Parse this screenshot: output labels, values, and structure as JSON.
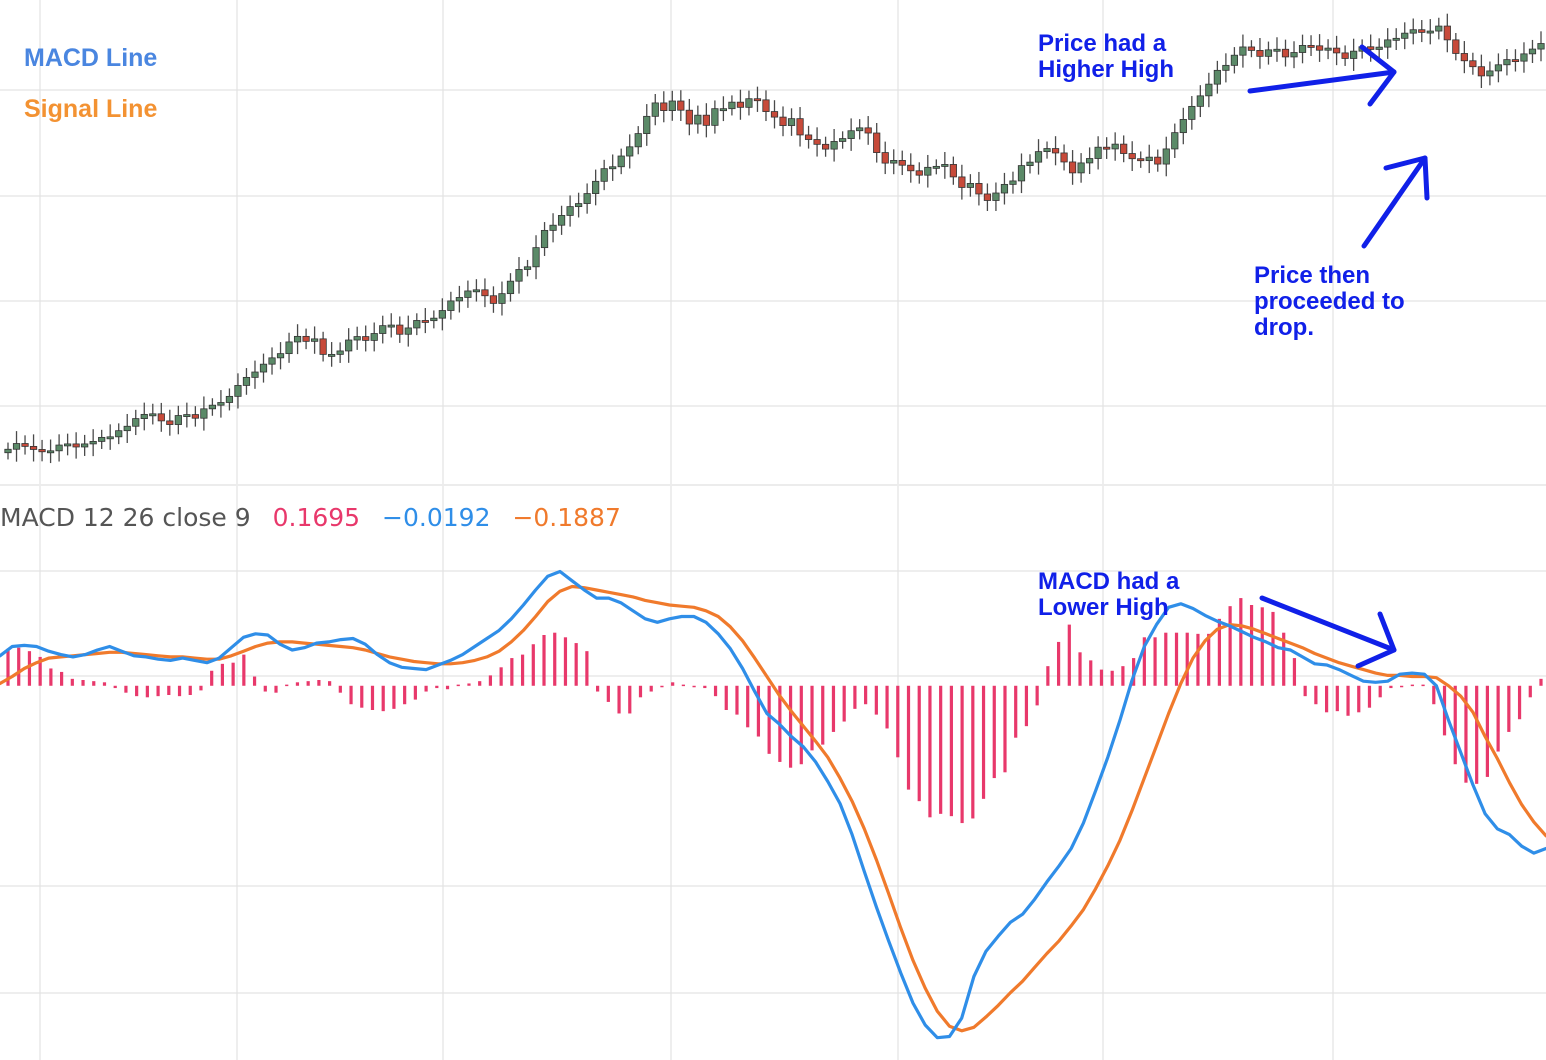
{
  "colors": {
    "macd": "#2f8ee8",
    "signal": "#f07a2c",
    "histogram": "#e8386b",
    "candle_up": "#5b8a68",
    "candle_down": "#c74a3a",
    "annotation": "#1020e8",
    "grid": "#e3e3e3",
    "legend_macd": "#4a86e0",
    "legend_signal": "#f39232"
  },
  "legend": {
    "macd_label": "MACD Line",
    "signal_label": "Signal Line"
  },
  "indicator": {
    "label": "MACD 12 26 close 9",
    "histogram_value": "0.1695",
    "macd_value": "−0.0192",
    "signal_value": "−0.1887"
  },
  "annotations": [
    "Price had a\nHigher High",
    "Price then\nproceeded to\ndrop.",
    "MACD had a\nLower High"
  ],
  "chart_data": [
    {
      "type": "candlestick",
      "title": "",
      "candles": [
        [
          0.38,
          0.56
        ],
        [
          0.56,
          0.86
        ],
        [
          0.86,
          0.71
        ],
        [
          0.71,
          0.55
        ],
        [
          0.55,
          0.43
        ],
        [
          0.43,
          0.48
        ],
        [
          0.48,
          0.78
        ],
        [
          0.78,
          0.84
        ],
        [
          0.84,
          0.68
        ],
        [
          0.68,
          0.84
        ],
        [
          0.84,
          0.97
        ],
        [
          0.97,
          1.18
        ],
        [
          1.18,
          1.21
        ],
        [
          1.21,
          1.53
        ],
        [
          1.53,
          1.76
        ],
        [
          1.76,
          2.16
        ],
        [
          2.16,
          2.38
        ],
        [
          2.38,
          2.41
        ],
        [
          2.41,
          2.04
        ],
        [
          2.04,
          1.85
        ],
        [
          1.85,
          2.32
        ],
        [
          2.32,
          2.37
        ],
        [
          2.37,
          2.18
        ],
        [
          2.18,
          2.67
        ],
        [
          2.67,
          2.86
        ],
        [
          2.86,
          3.0
        ],
        [
          3.0,
          3.32
        ],
        [
          3.32,
          3.89
        ],
        [
          3.89,
          4.31
        ],
        [
          4.31,
          4.59
        ],
        [
          4.59,
          5.0
        ],
        [
          5.0,
          5.33
        ],
        [
          5.33,
          5.55
        ],
        [
          5.55,
          6.16
        ],
        [
          6.16,
          6.45
        ],
        [
          6.45,
          6.19
        ],
        [
          6.19,
          6.32
        ],
        [
          6.32,
          5.51
        ],
        [
          5.51,
          5.51
        ],
        [
          5.51,
          5.69
        ],
        [
          5.69,
          6.26
        ],
        [
          6.26,
          6.44
        ],
        [
          6.44,
          6.24
        ],
        [
          6.24,
          6.6
        ],
        [
          6.6,
          7.01
        ],
        [
          7.01,
          7.04
        ],
        [
          7.04,
          6.56
        ],
        [
          6.56,
          6.89
        ],
        [
          6.89,
          7.28
        ],
        [
          7.28,
          7.27
        ],
        [
          7.27,
          7.4
        ],
        [
          7.4,
          7.8
        ],
        [
          7.8,
          8.3
        ],
        [
          8.3,
          8.48
        ],
        [
          8.48,
          8.82
        ],
        [
          8.82,
          8.88
        ],
        [
          8.88,
          8.57
        ],
        [
          8.57,
          8.17
        ],
        [
          8.17,
          8.68
        ],
        [
          8.68,
          9.33
        ],
        [
          9.33,
          9.94
        ],
        [
          9.94,
          10.08
        ],
        [
          10.08,
          11.08
        ],
        [
          11.08,
          11.98
        ],
        [
          11.98,
          12.25
        ],
        [
          12.25,
          12.76
        ],
        [
          12.76,
          13.22
        ],
        [
          13.22,
          13.38
        ],
        [
          13.38,
          13.9
        ],
        [
          13.9,
          14.54
        ],
        [
          14.54,
          15.2
        ],
        [
          15.2,
          15.3
        ],
        [
          15.3,
          15.86
        ],
        [
          15.86,
          16.34
        ],
        [
          16.34,
          17.03
        ],
        [
          17.03,
          17.93
        ],
        [
          17.93,
          18.63
        ],
        [
          18.63,
          18.23
        ],
        [
          18.23,
          18.73
        ],
        [
          18.73,
          18.25
        ],
        [
          18.25,
          17.53
        ],
        [
          17.53,
          17.99
        ],
        [
          17.99,
          17.46
        ],
        [
          17.46,
          18.33
        ],
        [
          18.33,
          18.33
        ],
        [
          18.33,
          18.67
        ],
        [
          18.67,
          18.4
        ],
        [
          18.4,
          18.85
        ],
        [
          18.85,
          18.79
        ],
        [
          18.79,
          18.18
        ],
        [
          18.18,
          17.89
        ],
        [
          17.89,
          17.45
        ],
        [
          17.45,
          17.81
        ],
        [
          17.81,
          16.96
        ],
        [
          16.96,
          16.72
        ],
        [
          16.72,
          16.47
        ],
        [
          16.47,
          16.22
        ],
        [
          16.22,
          16.62
        ],
        [
          16.62,
          16.77
        ],
        [
          16.77,
          17.18
        ],
        [
          17.18,
          17.33
        ],
        [
          17.33,
          17.06
        ],
        [
          17.06,
          16.04
        ],
        [
          16.04,
          15.49
        ],
        [
          15.49,
          15.63
        ],
        [
          15.63,
          15.38
        ],
        [
          15.38,
          15.09
        ],
        [
          15.09,
          14.86
        ],
        [
          14.86,
          15.27
        ],
        [
          15.27,
          15.32
        ],
        [
          15.32,
          15.42
        ],
        [
          15.42,
          14.77
        ],
        [
          14.77,
          14.22
        ],
        [
          14.22,
          14.43
        ],
        [
          14.43,
          13.88
        ],
        [
          13.88,
          13.54
        ],
        [
          13.54,
          13.93
        ],
        [
          13.93,
          14.38
        ],
        [
          14.38,
          14.56
        ],
        [
          14.56,
          15.36
        ],
        [
          15.36,
          15.54
        ],
        [
          15.54,
          16.09
        ],
        [
          16.09,
          16.25
        ],
        [
          16.25,
          16.02
        ],
        [
          16.02,
          15.55
        ],
        [
          15.55,
          14.98
        ],
        [
          14.98,
          15.5
        ],
        [
          15.5,
          15.73
        ],
        [
          15.73,
          16.32
        ],
        [
          16.32,
          16.23
        ],
        [
          16.23,
          16.48
        ],
        [
          16.48,
          15.99
        ],
        [
          15.99,
          15.72
        ],
        [
          15.72,
          15.62
        ],
        [
          15.62,
          15.8
        ],
        [
          15.8,
          15.44
        ],
        [
          15.44,
          16.23
        ],
        [
          16.23,
          17.08
        ],
        [
          17.08,
          17.77
        ],
        [
          17.77,
          18.45
        ],
        [
          18.45,
          19.0
        ],
        [
          19.0,
          19.61
        ],
        [
          19.61,
          20.33
        ],
        [
          20.33,
          20.59
        ],
        [
          20.59,
          21.12
        ],
        [
          21.12,
          21.55
        ],
        [
          21.55,
          21.37
        ],
        [
          21.37,
          21.06
        ],
        [
          21.06,
          21.4
        ],
        [
          21.4,
          21.43
        ],
        [
          21.43,
          21.03
        ],
        [
          21.03,
          21.26
        ],
        [
          21.26,
          21.63
        ],
        [
          21.63,
          21.61
        ],
        [
          21.61,
          21.38
        ],
        [
          21.38,
          21.49
        ],
        [
          21.49,
          21.24
        ],
        [
          21.24,
          20.95
        ],
        [
          20.95,
          21.33
        ],
        [
          21.33,
          21.56
        ],
        [
          21.56,
          21.42
        ],
        [
          21.42,
          21.54
        ],
        [
          21.54,
          21.92
        ],
        [
          21.92,
          22.0
        ],
        [
          22.0,
          22.27
        ],
        [
          22.27,
          22.45
        ],
        [
          22.45,
          22.31
        ],
        [
          22.31,
          22.38
        ],
        [
          22.38,
          22.64
        ],
        [
          22.64,
          21.92
        ],
        [
          21.92,
          21.21
        ],
        [
          21.21,
          20.83
        ],
        [
          20.83,
          20.52
        ],
        [
          20.52,
          20.04
        ],
        [
          20.04,
          20.3
        ],
        [
          20.3,
          20.62
        ],
        [
          20.62,
          20.89
        ],
        [
          20.89,
          20.81
        ],
        [
          20.81,
          21.19
        ],
        [
          21.19,
          21.44
        ],
        [
          21.44,
          21.73
        ]
      ],
      "ylim": [
        0,
        24
      ]
    },
    {
      "type": "line",
      "title": "MACD 12 26 close 9",
      "series": [
        {
          "name": "MACD Line",
          "values": [
            0.26,
            0.34,
            0.35,
            0.34,
            0.3,
            0.27,
            0.25,
            0.27,
            0.31,
            0.34,
            0.3,
            0.26,
            0.25,
            0.23,
            0.22,
            0.24,
            0.22,
            0.2,
            0.24,
            0.33,
            0.42,
            0.45,
            0.44,
            0.36,
            0.31,
            0.33,
            0.37,
            0.38,
            0.4,
            0.41,
            0.36,
            0.27,
            0.2,
            0.16,
            0.15,
            0.14,
            0.18,
            0.22,
            0.27,
            0.34,
            0.41,
            0.48,
            0.58,
            0.7,
            0.83,
            0.95,
            0.99,
            0.91,
            0.83,
            0.76,
            0.76,
            0.72,
            0.65,
            0.58,
            0.55,
            0.58,
            0.6,
            0.6,
            0.55,
            0.45,
            0.32,
            0.15,
            -0.05,
            -0.24,
            -0.33,
            -0.44,
            -0.53,
            -0.66,
            -0.83,
            -1.02,
            -1.29,
            -1.61,
            -1.92,
            -2.21,
            -2.49,
            -2.75,
            -2.94,
            -3.05,
            -3.04,
            -2.88,
            -2.52,
            -2.3,
            -2.17,
            -2.05,
            -1.98,
            -1.85,
            -1.7,
            -1.56,
            -1.41,
            -1.19,
            -0.91,
            -0.62,
            -0.3,
            0.05,
            0.34,
            0.53,
            0.68,
            0.71,
            0.67,
            0.61,
            0.56,
            0.52,
            0.47,
            0.42,
            0.38,
            0.33,
            0.31,
            0.25,
            0.19,
            0.18,
            0.14,
            0.09,
            0.04,
            0.03,
            0.04,
            0.1,
            0.11,
            0.1,
            0.0,
            -0.3,
            -0.58,
            -0.86,
            -1.11,
            -1.24,
            -1.29,
            -1.39,
            -1.45,
            -1.41
          ]
        },
        {
          "name": "Signal Line",
          "values": [
            0.02,
            0.08,
            0.15,
            0.2,
            0.24,
            0.25,
            0.26,
            0.27,
            0.28,
            0.29,
            0.29,
            0.28,
            0.27,
            0.26,
            0.25,
            0.25,
            0.24,
            0.23,
            0.23,
            0.26,
            0.3,
            0.34,
            0.37,
            0.38,
            0.38,
            0.37,
            0.36,
            0.35,
            0.34,
            0.33,
            0.31,
            0.28,
            0.25,
            0.23,
            0.21,
            0.2,
            0.19,
            0.19,
            0.2,
            0.22,
            0.25,
            0.3,
            0.38,
            0.48,
            0.6,
            0.73,
            0.82,
            0.86,
            0.85,
            0.83,
            0.81,
            0.79,
            0.77,
            0.74,
            0.72,
            0.7,
            0.69,
            0.68,
            0.65,
            0.6,
            0.51,
            0.39,
            0.24,
            0.08,
            -0.08,
            -0.22,
            -0.35,
            -0.48,
            -0.62,
            -0.8,
            -1.0,
            -1.24,
            -1.51,
            -1.8,
            -2.1,
            -2.38,
            -2.62,
            -2.82,
            -2.95,
            -2.99,
            -2.96,
            -2.87,
            -2.77,
            -2.66,
            -2.56,
            -2.44,
            -2.32,
            -2.21,
            -2.08,
            -1.94,
            -1.76,
            -1.56,
            -1.34,
            -1.08,
            -0.8,
            -0.52,
            -0.24,
            0.02,
            0.24,
            0.39,
            0.49,
            0.53,
            0.52,
            0.49,
            0.45,
            0.41,
            0.37,
            0.33,
            0.28,
            0.24,
            0.2,
            0.17,
            0.14,
            0.11,
            0.09,
            0.09,
            0.08,
            0.08,
            0.07,
            0.0,
            -0.09,
            -0.23,
            -0.44,
            -0.63,
            -0.84,
            -1.03,
            -1.18,
            -1.3
          ]
        }
      ],
      "histogram": [
        0.32,
        0.33,
        0.3,
        0.25,
        0.15,
        0.12,
        0.06,
        0.05,
        0.04,
        0.03,
        -0.02,
        -0.06,
        -0.09,
        -0.1,
        -0.09,
        -0.08,
        -0.09,
        -0.08,
        -0.04,
        0.13,
        0.19,
        0.2,
        0.27,
        0.08,
        -0.05,
        -0.06,
        0.01,
        0.03,
        0.04,
        0.05,
        0.04,
        -0.06,
        -0.16,
        -0.19,
        -0.21,
        -0.22,
        -0.2,
        -0.16,
        -0.12,
        -0.05,
        -0.02,
        -0.03,
        0.01,
        0.02,
        0.04,
        0.09,
        0.16,
        0.24,
        0.27,
        0.36,
        0.44,
        0.46,
        0.42,
        0.37,
        0.3,
        -0.05,
        -0.14,
        -0.24,
        -0.24,
        -0.1,
        -0.05,
        -0.01,
        0.03,
        0.01,
        -0.01,
        -0.02,
        -0.09,
        -0.21,
        -0.25,
        -0.36,
        -0.44,
        -0.59,
        -0.66,
        -0.71,
        -0.68,
        -0.56,
        -0.51,
        -0.4,
        -0.31,
        -0.2,
        -0.16,
        -0.25,
        -0.37,
        -0.62,
        -0.9,
        -1.0,
        -1.14,
        -1.11,
        -1.13,
        -1.19,
        -1.15,
        -0.98,
        -0.8,
        -0.75,
        -0.45,
        -0.35,
        -0.17,
        0.17,
        0.38,
        0.53,
        0.29,
        0.22,
        0.14,
        0.13,
        0.17,
        0.24,
        0.42,
        0.42,
        0.46,
        0.46,
        0.46,
        0.45,
        0.45,
        0.58,
        0.69,
        0.76,
        0.7,
        0.68,
        0.64,
        0.46,
        0.24,
        -0.09,
        -0.16,
        -0.23,
        -0.22,
        -0.26,
        -0.23,
        -0.19,
        -0.1,
        -0.02,
        -0.01,
        0.01,
        0.01,
        -0.16,
        -0.43,
        -0.68,
        -0.84,
        -0.85,
        -0.79,
        -0.57,
        -0.4,
        -0.29,
        -0.1,
        0.06
      ],
      "ylim": [
        -3.2,
        1.35
      ]
    }
  ]
}
